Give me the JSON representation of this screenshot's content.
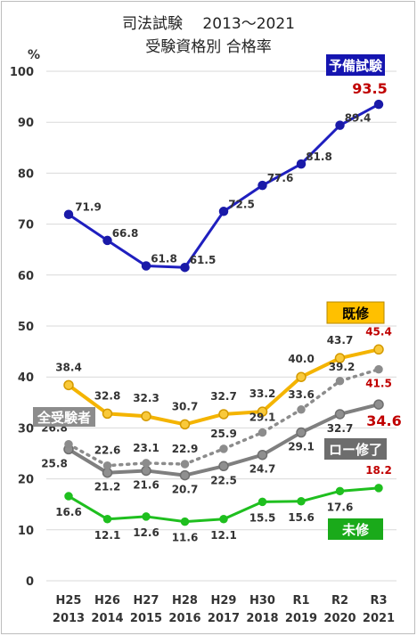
{
  "chart_data": {
    "type": "line",
    "title": "司法試験　 2013～2021",
    "subtitle": "受験資格別 合格率",
    "ylabel": "%",
    "ylim": [
      0,
      100
    ],
    "yticks": [
      "0",
      "10",
      "20",
      "30",
      "40",
      "50",
      "60",
      "70",
      "80",
      "90",
      "100"
    ],
    "categories": [
      {
        "era": "H25",
        "year": "2013"
      },
      {
        "era": "H26",
        "year": "2014"
      },
      {
        "era": "H27",
        "year": "2015"
      },
      {
        "era": "H28",
        "year": "2016"
      },
      {
        "era": "H29",
        "year": "2017"
      },
      {
        "era": "H30",
        "year": "2018"
      },
      {
        "era": "R1",
        "year": "2019"
      },
      {
        "era": "R2",
        "year": "2020"
      },
      {
        "era": "R3",
        "year": "2021"
      }
    ],
    "grid": true,
    "series": [
      {
        "key": "yobi",
        "name": "予備試験",
        "color": "#1f1fbf",
        "label_bg": "#1515b0",
        "label_fg": "#ffffff",
        "values": [
          71.9,
          66.8,
          61.8,
          61.5,
          72.5,
          77.6,
          81.8,
          89.4,
          93.5
        ],
        "labels": [
          "71.9",
          "66.8",
          "61.8",
          "61.5",
          "72.5",
          "77.6",
          "81.8",
          "89.4",
          "93.5"
        ]
      },
      {
        "key": "kishu",
        "name": "既修",
        "color": "#f4b400",
        "label_bg": "#ffc000",
        "label_fg": "#000000",
        "values": [
          38.4,
          32.8,
          32.3,
          30.7,
          32.7,
          33.2,
          40.0,
          43.7,
          45.4
        ],
        "labels": [
          "38.4",
          "32.8",
          "32.3",
          "30.7",
          "32.7",
          "33.2",
          "40.0",
          "43.7",
          "45.4"
        ]
      },
      {
        "key": "zen",
        "name": "全受験者",
        "color": "#808080",
        "label_bg": "#8c8c8c",
        "label_fg": "#ffffff",
        "values": [
          26.8,
          22.6,
          23.1,
          22.9,
          25.9,
          29.1,
          33.6,
          39.2,
          41.5
        ],
        "labels": [
          "26.8",
          "22.6",
          "23.1",
          "22.9",
          "25.9",
          "29.1",
          "33.6",
          "39.2",
          "41.5"
        ]
      },
      {
        "key": "ro",
        "name": "ロー修了",
        "color": "#7f7f7f",
        "label_bg": "#6d6d6d",
        "label_fg": "#ffffff",
        "values": [
          25.8,
          21.2,
          21.6,
          20.7,
          22.5,
          24.7,
          29.1,
          32.7,
          34.6
        ],
        "labels": [
          "25.8",
          "21.2",
          "21.6",
          "20.7",
          "22.5",
          "24.7",
          "29.1",
          "32.7",
          "34.6"
        ]
      },
      {
        "key": "mi",
        "name": "未修",
        "color": "#1fbf1f",
        "label_bg": "#1aaa1a",
        "label_fg": "#ffffff",
        "values": [
          16.6,
          12.1,
          12.6,
          11.6,
          12.1,
          15.5,
          15.6,
          17.6,
          18.2
        ],
        "labels": [
          "16.6",
          "12.1",
          "12.6",
          "11.6",
          "12.1",
          "15.5",
          "15.6",
          "17.6",
          "18.2"
        ]
      }
    ],
    "highlight_color": "#c00000"
  }
}
